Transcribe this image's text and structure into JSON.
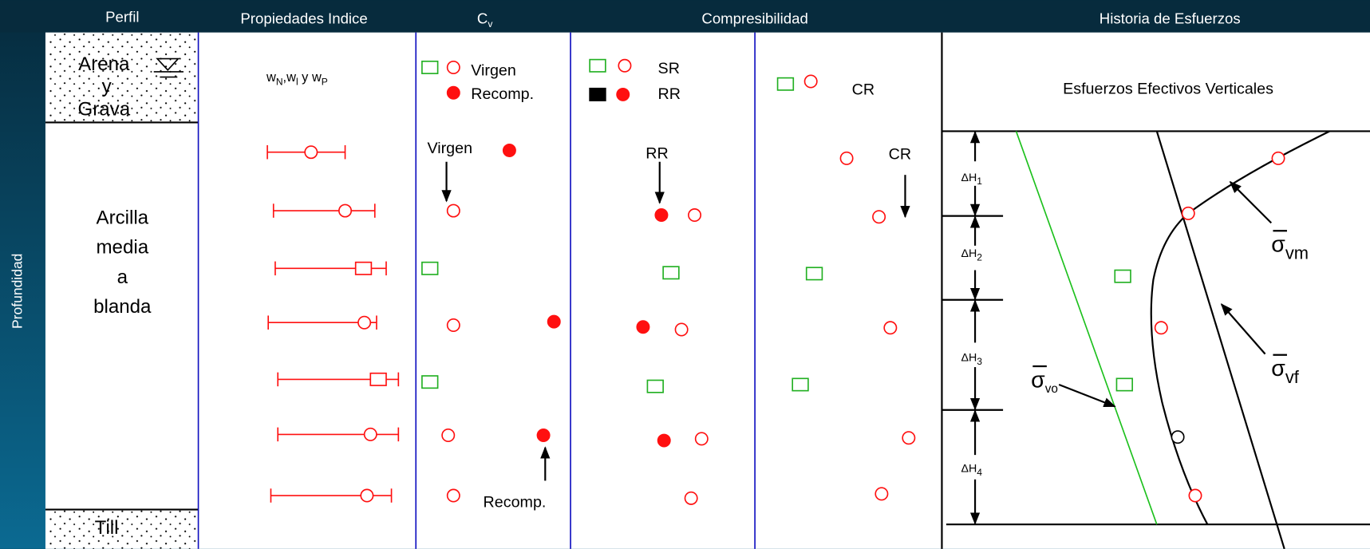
{
  "header": {
    "columns": [
      "Perfil",
      "Propiedades Indice",
      {
        "base": "C",
        "sub": "v"
      },
      "Compresibilidad",
      "Historia de Esfuerzos"
    ],
    "side_label": "Profundidad"
  },
  "profile": {
    "top_layer": [
      "Arena",
      "y",
      "Grava"
    ],
    "middle_layer": [
      "Arcilla",
      "media",
      "a",
      "blanda"
    ],
    "bottom_layer": "Till"
  },
  "index_properties": {
    "label_parts": [
      "w",
      "N",
      ",w",
      "l",
      " y w",
      "P"
    ]
  },
  "cv": {
    "legend": [
      "Virgen",
      "Recomp."
    ],
    "annotations": [
      "Virgen",
      "Recomp."
    ]
  },
  "compressibility": {
    "legend": [
      "SR",
      "RR",
      "CR"
    ],
    "annotations": [
      "RR",
      "CR"
    ]
  },
  "stress_history": {
    "title": "Esfuerzos  Efectivos  Verticales",
    "layers": [
      {
        "base": "ΔH",
        "sub": "1"
      },
      {
        "base": "ΔH",
        "sub": "2"
      },
      {
        "base": "ΔH",
        "sub": "3"
      },
      {
        "base": "ΔH",
        "sub": "4"
      }
    ],
    "curves": [
      {
        "base": "σ",
        "sub": "vm"
      },
      {
        "base": "σ",
        "sub": "vo"
      },
      {
        "base": "σ",
        "sub": "vf"
      }
    ]
  }
}
